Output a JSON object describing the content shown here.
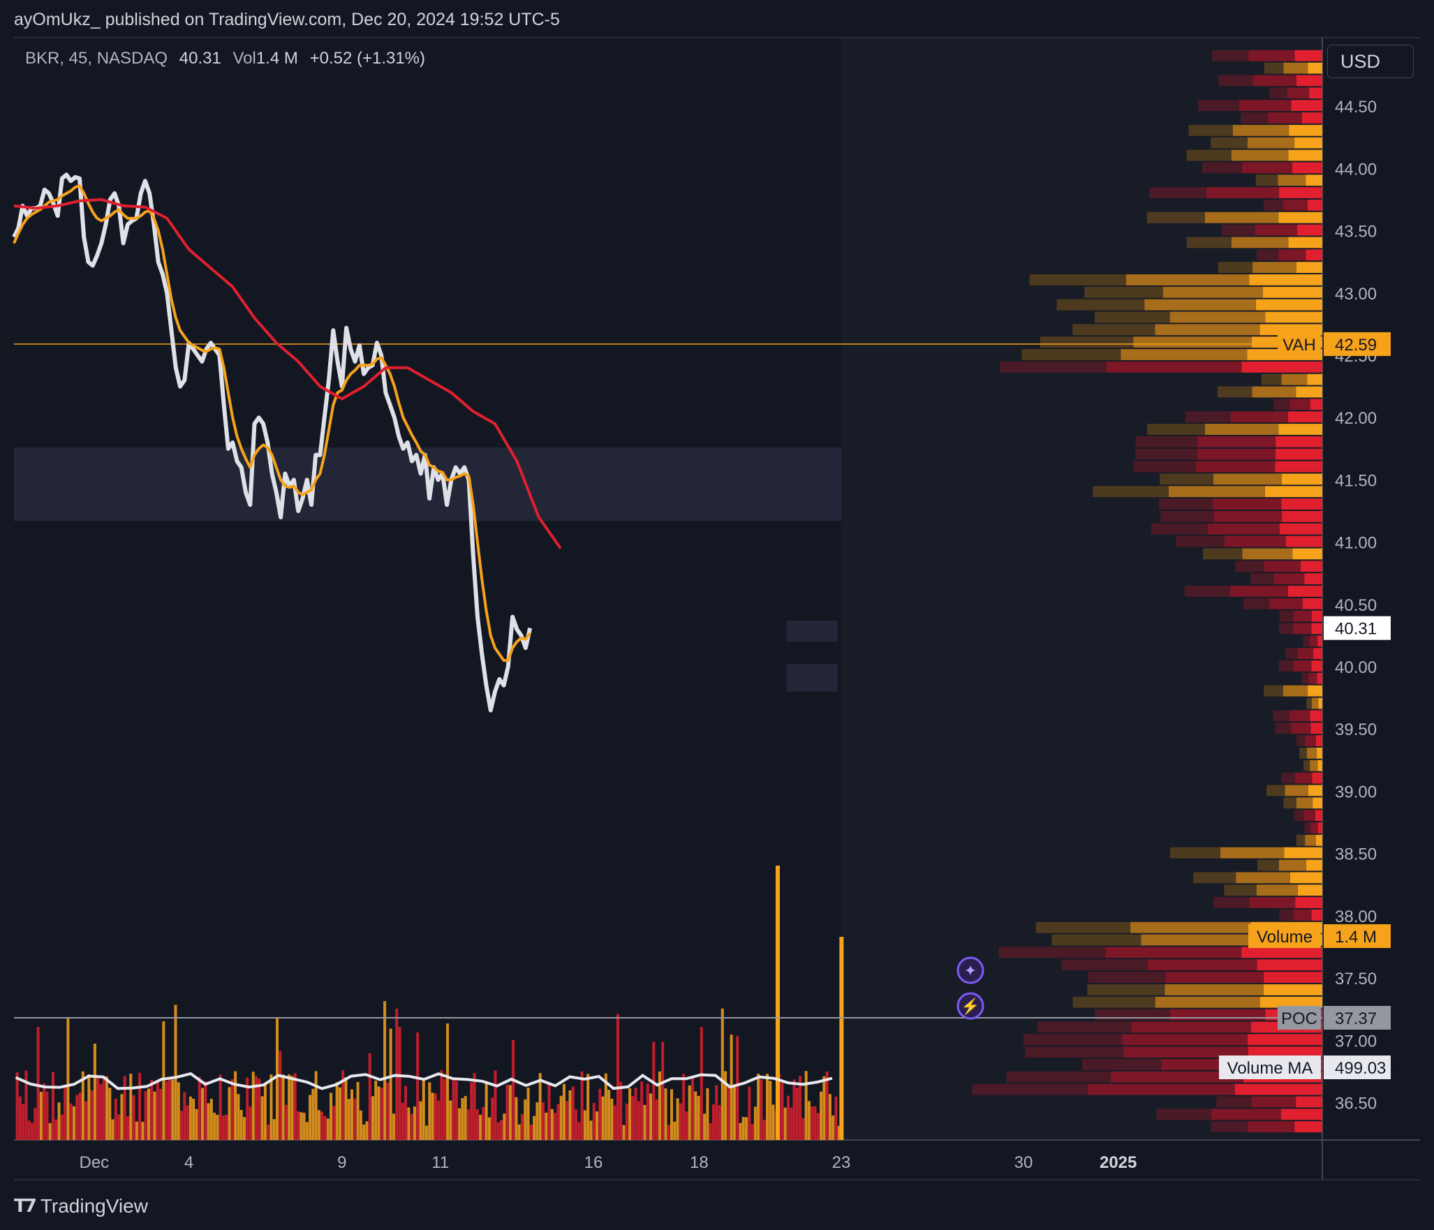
{
  "header": {
    "publish_info": "ayOmUkz_ published on TradingView.com, Dec 20, 2024 19:52 UTC-5"
  },
  "legend": {
    "symbol": "BKR, 45, NASDAQ",
    "last": "40.31",
    "vol_label": "Vol",
    "vol_value": "1.4 M",
    "change": "+0.52 (+1.31%)"
  },
  "currency": "USD",
  "brand": {
    "name": "TradingView"
  },
  "colors": {
    "background": "#131722",
    "price_line": "#dfe1e8",
    "fast_ma": "#f7a21b",
    "slow_ma": "#e0202f",
    "orange": "#f7a21b",
    "red": "#e0202f",
    "grid": "#2a2e39"
  },
  "chart_data": {
    "type": "line",
    "symbol": "BKR",
    "interval": "45",
    "exchange": "NASDAQ",
    "y_axis": {
      "min": 36.2,
      "max": 45.05,
      "ticks": [
        "44.50",
        "44.00",
        "43.50",
        "43.00",
        "42.50",
        "42.00",
        "41.50",
        "41.00",
        "40.50",
        "40.00",
        "39.50",
        "39.00",
        "38.50",
        "38.00",
        "37.50",
        "37.00",
        "36.50"
      ]
    },
    "x_axis": {
      "min": -1.6,
      "max": 34.3,
      "ticks": [
        {
          "label": "Dec",
          "t": 0.6
        },
        {
          "label": "4",
          "t": 3.2
        },
        {
          "label": "9",
          "t": 7.4
        },
        {
          "label": "11",
          "t": 10.1
        },
        {
          "label": "16",
          "t": 14.3
        },
        {
          "label": "18",
          "t": 17.2
        },
        {
          "label": "23",
          "t": 21.1
        },
        {
          "label": "30",
          "t": 26.1
        },
        {
          "label": "2025",
          "t": 28.7
        }
      ]
    },
    "series": [
      {
        "role": "price",
        "t_start": -1.6,
        "t_step": 0.12,
        "values": [
          43.45,
          43.52,
          43.7,
          43.62,
          43.68,
          43.68,
          43.7,
          43.83,
          43.8,
          43.72,
          43.62,
          43.92,
          43.95,
          43.9,
          43.93,
          43.92,
          43.45,
          43.25,
          43.22,
          43.3,
          43.4,
          43.55,
          43.75,
          43.8,
          43.7,
          43.4,
          43.55,
          43.58,
          43.6,
          43.8,
          43.9,
          43.8,
          43.55,
          43.25,
          43.15,
          43.0,
          42.7,
          42.4,
          42.25,
          42.3,
          42.6,
          42.55,
          42.5,
          42.45,
          42.55,
          42.6,
          42.55,
          42.5,
          42.1,
          41.75,
          41.8,
          41.65,
          41.6,
          41.4,
          41.3,
          41.95,
          42.0,
          41.95,
          41.8,
          41.55,
          41.4,
          41.2,
          41.55,
          41.45,
          41.5,
          41.25,
          41.35,
          41.5,
          41.3,
          41.7,
          41.7,
          42.0,
          42.3,
          42.7,
          42.45,
          42.25,
          42.72,
          42.55,
          42.45,
          42.58,
          42.35,
          42.4,
          42.42,
          42.6,
          42.5,
          42.2,
          42.1,
          42.0,
          41.85,
          41.75,
          41.8,
          41.65,
          41.7,
          41.55,
          41.7,
          41.35,
          41.6,
          41.5,
          41.55,
          41.3,
          41.5,
          41.6,
          41.55,
          41.6,
          41.5,
          40.9,
          40.4,
          40.1,
          39.85,
          39.65,
          39.8,
          39.9,
          39.85,
          40.0,
          40.4,
          40.3,
          40.25,
          40.15,
          40.31
        ]
      },
      {
        "role": "fast-ma",
        "t_start": -1.6,
        "t_step": 0.12,
        "values": [
          43.4,
          43.48,
          43.55,
          43.6,
          43.63,
          43.65,
          43.67,
          43.7,
          43.73,
          43.74,
          43.75,
          43.78,
          43.8,
          43.82,
          43.85,
          43.86,
          43.8,
          43.72,
          43.65,
          43.6,
          43.58,
          43.6,
          43.62,
          43.65,
          43.67,
          43.63,
          43.6,
          43.6,
          43.6,
          43.62,
          43.65,
          43.66,
          43.6,
          43.5,
          43.35,
          43.15,
          42.95,
          42.8,
          42.7,
          42.65,
          42.6,
          42.58,
          42.56,
          42.54,
          42.53,
          42.55,
          42.56,
          42.55,
          42.4,
          42.2,
          42.0,
          41.85,
          41.75,
          41.67,
          41.6,
          41.7,
          41.75,
          41.78,
          41.76,
          41.7,
          41.6,
          41.5,
          41.45,
          41.44,
          41.45,
          41.4,
          41.38,
          41.4,
          41.42,
          41.5,
          41.55,
          41.7,
          41.9,
          42.1,
          42.2,
          42.22,
          42.3,
          42.35,
          42.38,
          42.42,
          42.42,
          42.42,
          42.43,
          42.47,
          42.48,
          42.42,
          42.35,
          42.25,
          42.12,
          42.0,
          41.93,
          41.86,
          41.8,
          41.73,
          41.7,
          41.62,
          41.6,
          41.57,
          41.56,
          41.5,
          41.5,
          41.52,
          41.53,
          41.55,
          41.53,
          41.3,
          41.0,
          40.7,
          40.45,
          40.25,
          40.15,
          40.1,
          40.05,
          40.05,
          40.15,
          40.2,
          40.23,
          40.22,
          40.27
        ]
      },
      {
        "role": "slow-ma",
        "t_start": -1.6,
        "t_step": 0.6,
        "values": [
          43.7,
          43.68,
          43.7,
          43.74,
          43.75,
          43.7,
          43.69,
          43.6,
          43.35,
          43.2,
          43.05,
          42.8,
          42.6,
          42.45,
          42.25,
          42.15,
          42.25,
          42.4,
          42.4,
          42.3,
          42.2,
          42.05,
          41.95,
          41.65,
          41.2,
          40.95
        ]
      }
    ],
    "volume_profile": {
      "vah": "42.59",
      "poc": "37.37"
    },
    "labels": {
      "vah": "VAH",
      "poc": "POC",
      "volume": "Volume",
      "volume_value": "1.4 M",
      "volume_ma": "Volume MA",
      "volume_ma_value": "499.03 K",
      "last_price": "40.31"
    }
  }
}
